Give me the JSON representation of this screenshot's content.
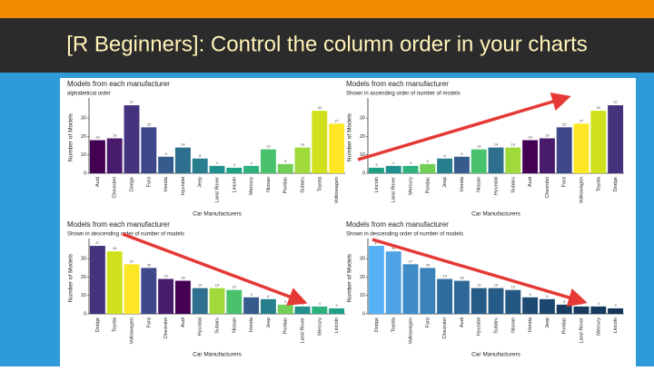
{
  "header": {
    "title": "[R Beginners]: Control the column order in your charts"
  },
  "chart_data": [
    {
      "type": "bar",
      "title": "Models from each manufacturer",
      "subtitle": "alphabetical order",
      "x_label": "Car Manufacturers",
      "y_label": "Number of Models",
      "categories": [
        "Audi",
        "Chevrolet",
        "Dodge",
        "Ford",
        "Honda",
        "Hyundai",
        "Jeep",
        "Land Rover",
        "Lincoln",
        "Mercury",
        "Nissan",
        "Pontiac",
        "Subaru",
        "Toyota",
        "Volkswagen"
      ],
      "values": [
        18,
        19,
        37,
        25,
        9,
        14,
        8,
        4,
        3,
        4,
        13,
        5,
        14,
        34,
        27
      ],
      "colors": [
        "#440154",
        "#481B6D",
        "#46337E",
        "#3F4889",
        "#365C8D",
        "#2E6E8E",
        "#277F8E",
        "#21908C",
        "#1FA187",
        "#2DB27D",
        "#4AC16D",
        "#71CF57",
        "#9FDA3A",
        "#CFE11C",
        "#FDE725"
      ],
      "ylim": [
        0,
        39
      ],
      "yticks": [
        0,
        10,
        20,
        30
      ]
    },
    {
      "type": "bar",
      "title": "Models from each manufacturer",
      "subtitle": "Shown in ascending order of  number of models",
      "x_label": "Car Manufacturers",
      "y_label": "Number of Models",
      "categories": [
        "Lincoln",
        "Land Rover",
        "Mercury",
        "Pontiac",
        "Jeep",
        "Honda",
        "Nissan",
        "Hyundai",
        "Subaru",
        "Audi",
        "Chevrolet",
        "Ford",
        "Volkswagen",
        "Toyota",
        "Dodge"
      ],
      "values": [
        3,
        4,
        4,
        5,
        8,
        9,
        13,
        14,
        14,
        18,
        19,
        25,
        27,
        34,
        37
      ],
      "colors": [
        "#1FA187",
        "#21908C",
        "#2DB27D",
        "#71CF57",
        "#277F8E",
        "#365C8D",
        "#4AC16D",
        "#2E6E8E",
        "#9FDA3A",
        "#440154",
        "#481B6D",
        "#3F4889",
        "#FDE725",
        "#CFE11C",
        "#46337E"
      ],
      "ylim": [
        0,
        39
      ],
      "yticks": [
        0,
        10,
        20,
        30
      ]
    },
    {
      "type": "bar",
      "title": "Models from each manufacturer",
      "subtitle": "Shown in descending order of  number of models",
      "x_label": "Car Manufacturers",
      "y_label": "Number of Models",
      "categories": [
        "Dodge",
        "Toyota",
        "Volkswagen",
        "Ford",
        "Chevrolet",
        "Audi",
        "Hyundai",
        "Subaru",
        "Nissan",
        "Honda",
        "Jeep",
        "Pontiac",
        "Land Rover",
        "Mercury",
        "Lincoln"
      ],
      "values": [
        37,
        34,
        27,
        25,
        19,
        18,
        14,
        14,
        13,
        9,
        8,
        5,
        4,
        4,
        3
      ],
      "colors": [
        "#46337E",
        "#CFE11C",
        "#FDE725",
        "#3F4889",
        "#481B6D",
        "#440154",
        "#2E6E8E",
        "#9FDA3A",
        "#4AC16D",
        "#365C8D",
        "#277F8E",
        "#71CF57",
        "#21908C",
        "#2DB27D",
        "#1FA187"
      ],
      "ylim": [
        0,
        39
      ],
      "yticks": [
        0,
        10,
        20,
        30
      ]
    },
    {
      "type": "bar",
      "title": "Models from each manufacturer",
      "subtitle": "Shown in descending order of  number of models",
      "x_label": "Car Manufacturers",
      "y_label": "Number of Models",
      "categories": [
        "Dodge",
        "Toyota",
        "Volkswagen",
        "Ford",
        "Chevrolet",
        "Audi",
        "Hyundai",
        "Subaru",
        "Nissan",
        "Honda",
        "Jeep",
        "Pontiac",
        "Land Rover",
        "Mercury",
        "Lincoln"
      ],
      "values": [
        37,
        34,
        27,
        25,
        19,
        18,
        14,
        14,
        13,
        9,
        8,
        5,
        4,
        4,
        3
      ],
      "colors": [
        "#56B1F7",
        "#4DA3E6",
        "#3F8CC6",
        "#3A83BA",
        "#2F6C9E",
        "#2D6899",
        "#265B88",
        "#265B88",
        "#245883",
        "#1D4A72",
        "#1B466D",
        "#173E62",
        "#163B5E",
        "#163B5E",
        "#14385B"
      ],
      "ylim": [
        0,
        39
      ],
      "yticks": [
        0,
        10,
        20,
        30
      ]
    }
  ]
}
